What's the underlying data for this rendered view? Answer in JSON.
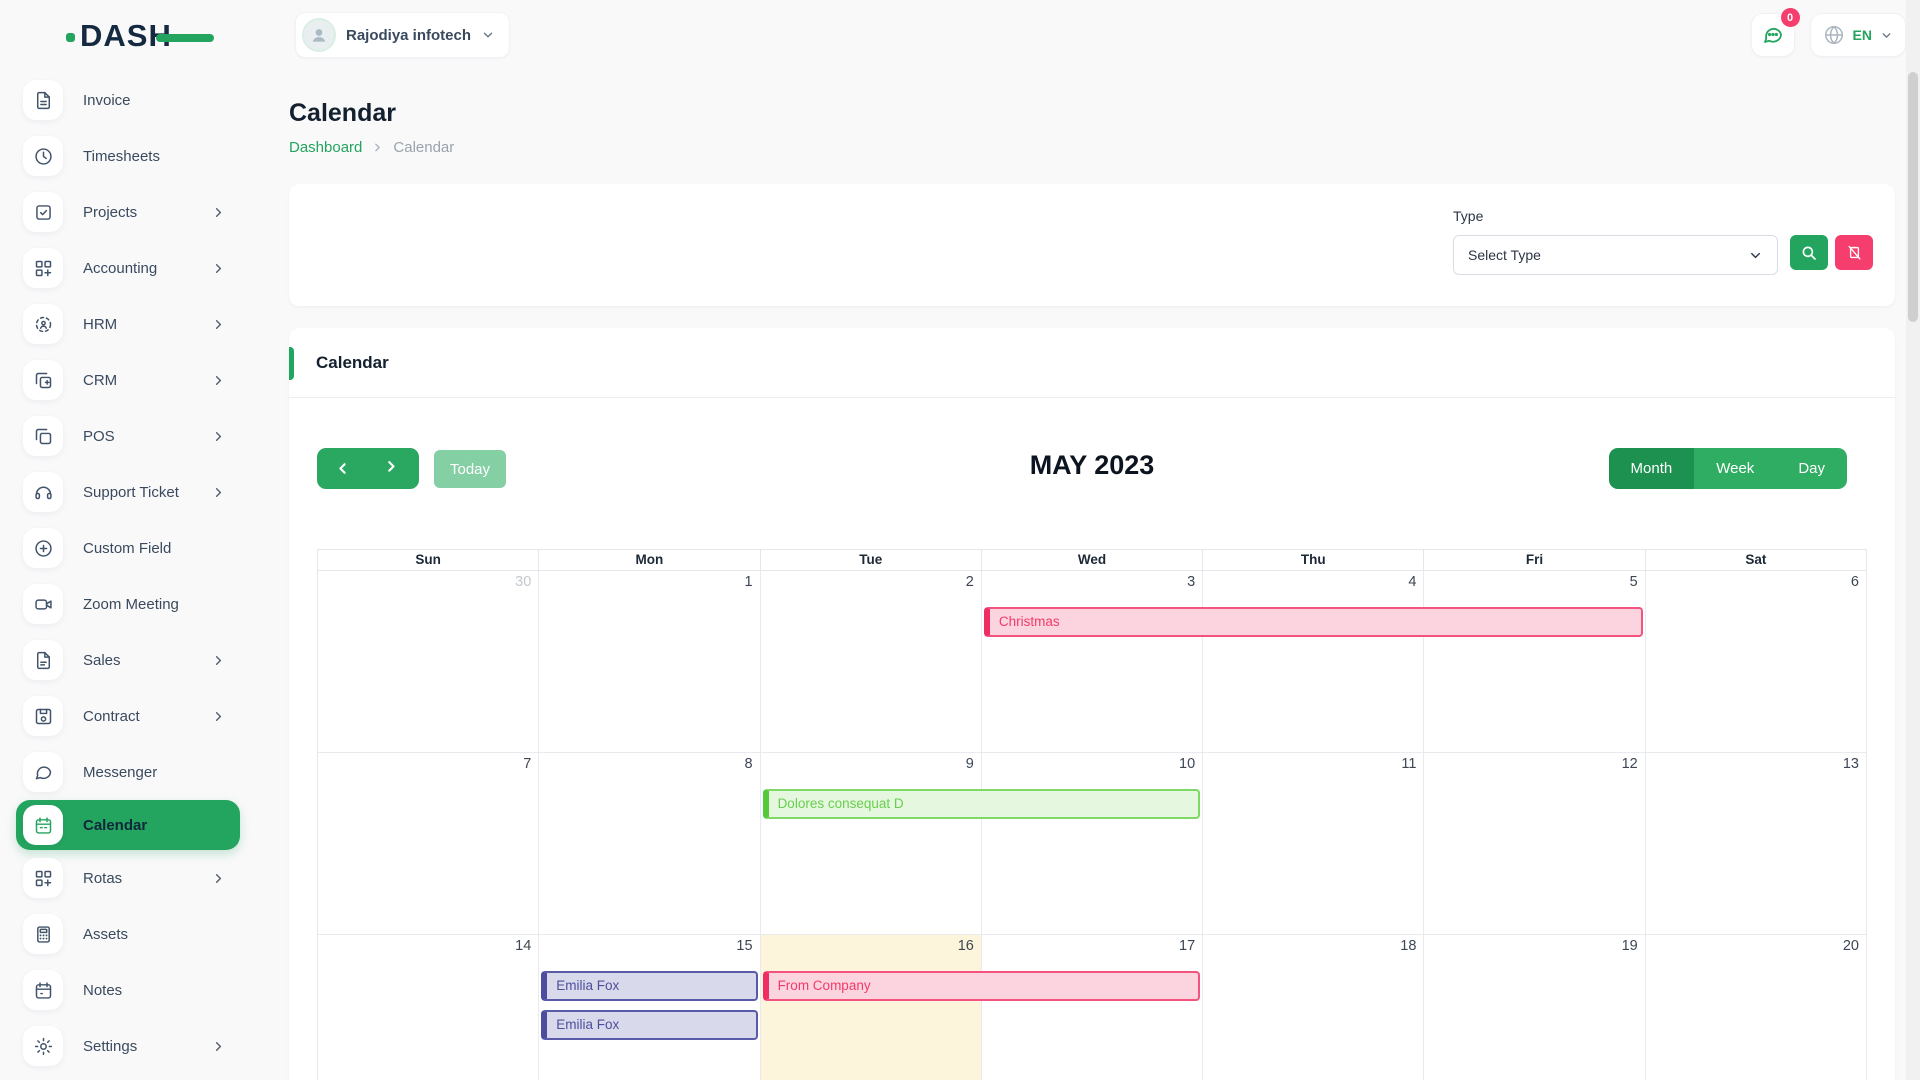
{
  "brand": {
    "name": "DASH"
  },
  "topbar": {
    "company": {
      "name": "Rajodiya infotech"
    },
    "messages_badge": "0",
    "language": {
      "code": "EN"
    }
  },
  "sidebar": {
    "items": [
      {
        "label": "Invoice",
        "icon": "invoice-icon",
        "chevron": false,
        "active": false
      },
      {
        "label": "Timesheets",
        "icon": "clock-icon",
        "chevron": false,
        "active": false
      },
      {
        "label": "Projects",
        "icon": "projects-icon",
        "chevron": true,
        "active": false
      },
      {
        "label": "Accounting",
        "icon": "accounting-icon",
        "chevron": true,
        "active": false
      },
      {
        "label": "HRM",
        "icon": "hrm-icon",
        "chevron": true,
        "active": false
      },
      {
        "label": "CRM",
        "icon": "crm-icon",
        "chevron": true,
        "active": false
      },
      {
        "label": "POS",
        "icon": "pos-icon",
        "chevron": true,
        "active": false
      },
      {
        "label": "Support Ticket",
        "icon": "headset-icon",
        "chevron": true,
        "active": false
      },
      {
        "label": "Custom Field",
        "icon": "plus-circle-icon",
        "chevron": false,
        "active": false
      },
      {
        "label": "Zoom Meeting",
        "icon": "video-icon",
        "chevron": false,
        "active": false
      },
      {
        "label": "Sales",
        "icon": "sales-icon",
        "chevron": true,
        "active": false
      },
      {
        "label": "Contract",
        "icon": "contract-icon",
        "chevron": true,
        "active": false
      },
      {
        "label": "Messenger",
        "icon": "messenger-icon",
        "chevron": false,
        "active": false
      },
      {
        "label": "Calendar",
        "icon": "calendar-icon",
        "chevron": false,
        "active": true
      },
      {
        "label": "Rotas",
        "icon": "rotas-icon",
        "chevron": true,
        "active": false
      },
      {
        "label": "Assets",
        "icon": "assets-icon",
        "chevron": false,
        "active": false
      },
      {
        "label": "Notes",
        "icon": "notes-icon",
        "chevron": false,
        "active": false
      },
      {
        "label": "Settings",
        "icon": "settings-icon",
        "chevron": true,
        "active": false
      }
    ]
  },
  "page": {
    "title": "Calendar",
    "breadcrumb": {
      "home": "Dashboard",
      "current": "Calendar"
    }
  },
  "filter": {
    "type_label": "Type",
    "select_value": "Select Type",
    "buttons": [
      {
        "name": "search",
        "icon": "search-icon"
      },
      {
        "name": "reset",
        "icon": "reset-icon"
      }
    ]
  },
  "calendar_card": {
    "title": "Calendar",
    "toolbar": {
      "today": "Today",
      "month_title": "MAY 2023",
      "views": [
        "Month",
        "Week",
        "Day"
      ],
      "active_view": "Month"
    },
    "day_headers": [
      "Sun",
      "Mon",
      "Tue",
      "Wed",
      "Thu",
      "Fri",
      "Sat"
    ],
    "weeks": [
      {
        "days": [
          {
            "n": "30",
            "muted": true
          },
          {
            "n": "1"
          },
          {
            "n": "2"
          },
          {
            "n": "3"
          },
          {
            "n": "4"
          },
          {
            "n": "5"
          },
          {
            "n": "6"
          }
        ],
        "events": [
          {
            "title": "Christmas",
            "col": 3,
            "span": 3,
            "color": "pink",
            "slot": 0
          }
        ]
      },
      {
        "days": [
          {
            "n": "7"
          },
          {
            "n": "8"
          },
          {
            "n": "9"
          },
          {
            "n": "10"
          },
          {
            "n": "11"
          },
          {
            "n": "12"
          },
          {
            "n": "13"
          }
        ],
        "events": [
          {
            "title": "Dolores consequat D",
            "col": 2,
            "span": 2,
            "color": "green",
            "slot": 0
          }
        ]
      },
      {
        "days": [
          {
            "n": "14"
          },
          {
            "n": "15"
          },
          {
            "n": "16",
            "today": true
          },
          {
            "n": "17"
          },
          {
            "n": "18"
          },
          {
            "n": "19"
          },
          {
            "n": "20"
          }
        ],
        "events": [
          {
            "title": "Emilia Fox",
            "col": 1,
            "span": 1,
            "color": "purple",
            "slot": 0
          },
          {
            "title": "From Company",
            "col": 2,
            "span": 2,
            "color": "pink",
            "slot": 0
          },
          {
            "title": "Emilia Fox",
            "col": 1,
            "span": 1,
            "color": "purple",
            "slot": 1
          }
        ]
      }
    ]
  },
  "colors": {
    "primary_green": "#23a45f",
    "active_view_green": "#1d9150",
    "pink": "#f53e6d",
    "event_pink_bg": "#fbd4df",
    "event_green_bg": "#e5f7df",
    "event_purple_bg": "#d9d9ec",
    "today_cell_bg": "#fcf5dc"
  }
}
